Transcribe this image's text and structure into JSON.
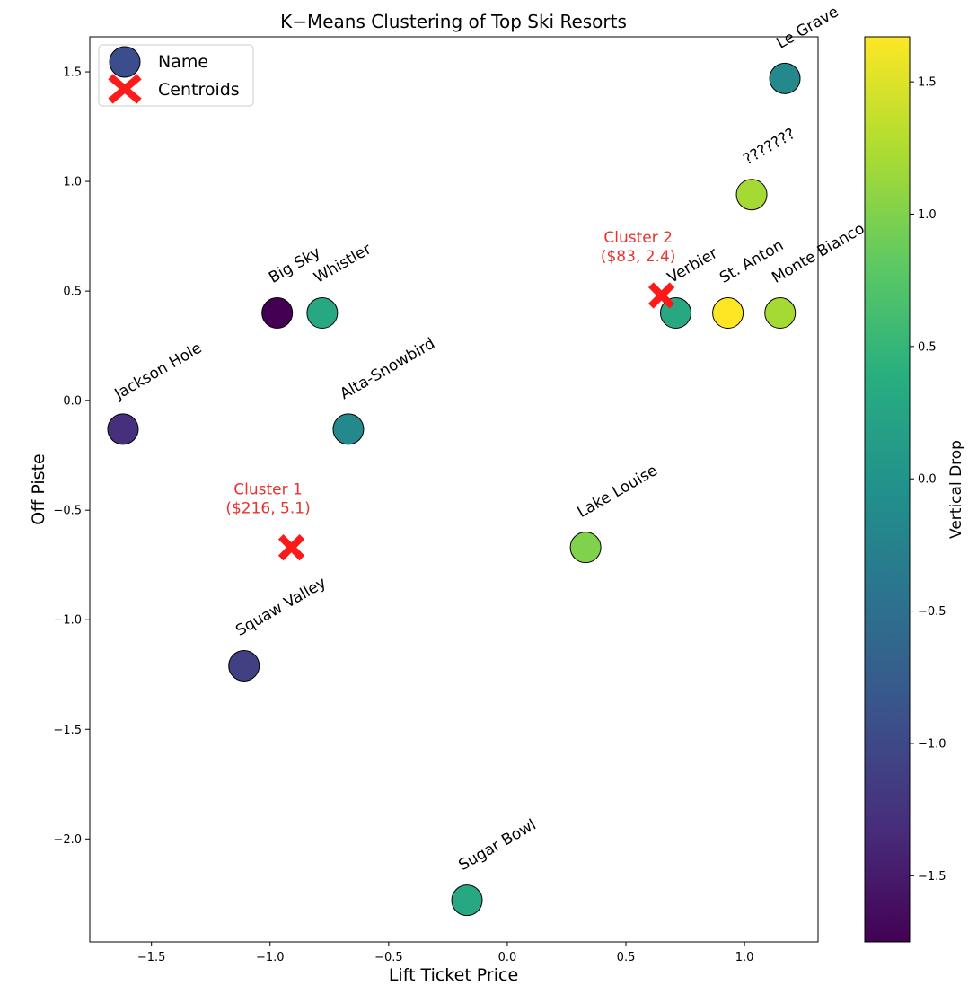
{
  "chart_data": {
    "type": "scatter",
    "title": "K−Means Clustering of Top Ski Resorts",
    "xlabel": "Lift Ticket Price",
    "ylabel": "Off Piste",
    "xlim": [
      -1.76,
      1.31
    ],
    "ylim": [
      -2.47,
      1.66
    ],
    "xticks": [
      -1.5,
      -1.0,
      -0.5,
      0.0,
      0.5,
      1.0
    ],
    "xtick_labels": [
      "−1.5",
      "−1.0",
      "−0.5",
      "0.0",
      "0.5",
      "1.0"
    ],
    "yticks": [
      -2.0,
      -1.5,
      -1.0,
      -0.5,
      0.0,
      0.5,
      1.0,
      1.5
    ],
    "ytick_labels": [
      "−2.0",
      "−1.5",
      "−1.0",
      "−0.5",
      "0.0",
      "0.5",
      "1.0",
      "1.5"
    ],
    "legend": {
      "placement": "upper-left",
      "entries": [
        "Name",
        "Centroids"
      ]
    },
    "colorbar": {
      "label": "Vertical Drop",
      "range": [
        -1.75,
        1.67
      ],
      "ticks": [
        -1.5,
        -1.0,
        -0.5,
        0.0,
        0.5,
        1.0,
        1.5
      ],
      "tick_labels": [
        "−1.5",
        "−1.0",
        "−0.5",
        "0.0",
        "0.5",
        "1.0",
        "1.5"
      ],
      "colormap": "viridis"
    },
    "points": [
      {
        "name": "Le Grave",
        "x": 1.17,
        "y": 1.47,
        "c": -0.15
      },
      {
        "name": "???????",
        "x": 1.03,
        "y": 0.94,
        "c": 1.2
      },
      {
        "name": "Big Sky",
        "x": -0.97,
        "y": 0.4,
        "c": -1.75
      },
      {
        "name": "Whistler",
        "x": -0.78,
        "y": 0.4,
        "c": 0.3
      },
      {
        "name": "Verbier",
        "x": 0.71,
        "y": 0.4,
        "c": 0.3
      },
      {
        "name": "St. Anton",
        "x": 0.93,
        "y": 0.4,
        "c": 1.67
      },
      {
        "name": "Monte Bianco",
        "x": 1.15,
        "y": 0.4,
        "c": 1.2
      },
      {
        "name": "Jackson Hole",
        "x": -1.62,
        "y": -0.13,
        "c": -1.3
      },
      {
        "name": "Alta-Snowbird",
        "x": -0.67,
        "y": -0.13,
        "c": -0.15
      },
      {
        "name": "Lake Louise",
        "x": 0.33,
        "y": -0.67,
        "c": 1.0
      },
      {
        "name": "Squaw Valley",
        "x": -1.11,
        "y": -1.21,
        "c": -1.1
      },
      {
        "name": "Sugar Bowl",
        "x": -0.17,
        "y": -2.28,
        "c": 0.3
      }
    ],
    "centroids": [
      {
        "label_line1": "Cluster 1",
        "label_line2": "($216, 5.1)",
        "x": -0.91,
        "y": -0.67
      },
      {
        "label_line1": "Cluster 2",
        "label_line2": "($83, 2.4)",
        "x": 0.65,
        "y": 0.48
      }
    ],
    "colors": {
      "centroid": "#ff1a1a",
      "cluster_label": "#e8332e",
      "legend_name_marker": "#3b4d8c"
    }
  }
}
